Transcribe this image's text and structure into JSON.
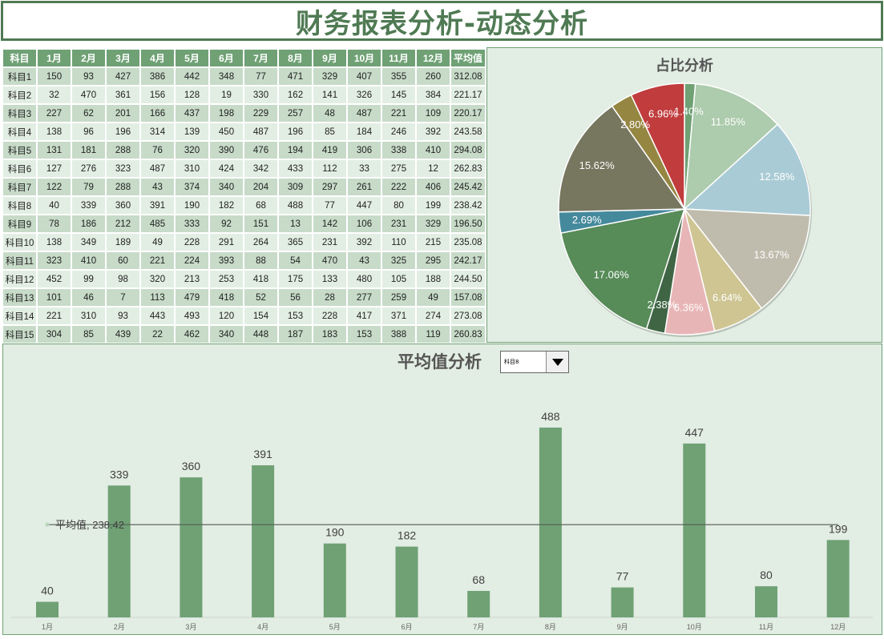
{
  "header": {
    "title": "财务报表分析-动态分析"
  },
  "table": {
    "columns": [
      "科目",
      "1月",
      "2月",
      "3月",
      "4月",
      "5月",
      "6月",
      "7月",
      "8月",
      "9月",
      "10月",
      "11月",
      "12月",
      "平均值"
    ],
    "rows": [
      [
        "科目1",
        "150",
        "93",
        "427",
        "386",
        "442",
        "348",
        "77",
        "471",
        "329",
        "407",
        "355",
        "260",
        "312.08"
      ],
      [
        "科目2",
        "32",
        "470",
        "361",
        "156",
        "128",
        "19",
        "330",
        "162",
        "141",
        "326",
        "145",
        "384",
        "221.17"
      ],
      [
        "科目3",
        "227",
        "62",
        "201",
        "166",
        "437",
        "198",
        "229",
        "257",
        "48",
        "487",
        "221",
        "109",
        "220.17"
      ],
      [
        "科目4",
        "138",
        "96",
        "196",
        "314",
        "139",
        "450",
        "487",
        "196",
        "85",
        "184",
        "246",
        "392",
        "243.58"
      ],
      [
        "科目5",
        "131",
        "181",
        "288",
        "76",
        "320",
        "390",
        "476",
        "194",
        "419",
        "306",
        "338",
        "410",
        "294.08"
      ],
      [
        "科目6",
        "127",
        "276",
        "323",
        "487",
        "310",
        "424",
        "342",
        "433",
        "112",
        "33",
        "275",
        "12",
        "262.83"
      ],
      [
        "科目7",
        "122",
        "79",
        "288",
        "43",
        "374",
        "340",
        "204",
        "309",
        "297",
        "261",
        "222",
        "406",
        "245.42"
      ],
      [
        "科目8",
        "40",
        "339",
        "360",
        "391",
        "190",
        "182",
        "68",
        "488",
        "77",
        "447",
        "80",
        "199",
        "238.42"
      ],
      [
        "科目9",
        "78",
        "186",
        "212",
        "485",
        "333",
        "92",
        "151",
        "13",
        "142",
        "106",
        "231",
        "329",
        "196.50"
      ],
      [
        "科目10",
        "138",
        "349",
        "189",
        "49",
        "228",
        "291",
        "264",
        "365",
        "231",
        "392",
        "110",
        "215",
        "235.08"
      ],
      [
        "科目11",
        "323",
        "410",
        "60",
        "221",
        "224",
        "393",
        "88",
        "54",
        "470",
        "43",
        "325",
        "295",
        "242.17"
      ],
      [
        "科目12",
        "452",
        "99",
        "98",
        "320",
        "213",
        "253",
        "418",
        "175",
        "133",
        "480",
        "105",
        "188",
        "244.50"
      ],
      [
        "科目13",
        "101",
        "46",
        "7",
        "113",
        "479",
        "418",
        "52",
        "56",
        "28",
        "277",
        "259",
        "49",
        "157.08"
      ],
      [
        "科目14",
        "221",
        "310",
        "93",
        "443",
        "493",
        "120",
        "154",
        "153",
        "228",
        "417",
        "371",
        "274",
        "273.08"
      ],
      [
        "科目15",
        "304",
        "85",
        "439",
        "22",
        "462",
        "340",
        "448",
        "187",
        "183",
        "153",
        "388",
        "119",
        "260.83"
      ]
    ]
  },
  "pie": {
    "title": "占比分析",
    "slices": [
      {
        "label": "1.40%",
        "value": 40,
        "color": "#6fa175"
      },
      {
        "label": "11.85%",
        "value": 339,
        "color": "#adcbad"
      },
      {
        "label": "12.58%",
        "value": 360,
        "color": "#a9cbd5"
      },
      {
        "label": "13.67%",
        "value": 391,
        "color": "#bfbcad"
      },
      {
        "label": "6.64%",
        "value": 190,
        "color": "#cec593"
      },
      {
        "label": "6.36%",
        "value": 182,
        "color": "#e8b5b6"
      },
      {
        "label": "2.38%",
        "value": 68,
        "color": "#3f6544"
      },
      {
        "label": "17.06%",
        "value": 488,
        "color": "#578b58"
      },
      {
        "label": "2.69%",
        "value": 77,
        "color": "#45899c"
      },
      {
        "label": "15.62%",
        "value": 447,
        "color": "#77765f"
      },
      {
        "label": "2.80%",
        "value": 80,
        "color": "#958641"
      },
      {
        "label": "6.96%",
        "value": 199,
        "color": "#c13c3d"
      }
    ]
  },
  "bar": {
    "title": "平均值分析",
    "dropdown": {
      "selected": "科目8"
    },
    "avg_label": "平均值, 238.42"
  },
  "chart_data": [
    {
      "type": "pie",
      "title": "占比分析",
      "categories": [
        "1月",
        "2月",
        "3月",
        "4月",
        "5月",
        "6月",
        "7月",
        "8月",
        "9月",
        "10月",
        "11月",
        "12月"
      ],
      "values": [
        40,
        339,
        360,
        391,
        190,
        182,
        68,
        488,
        77,
        447,
        80,
        199
      ],
      "percent_labels": [
        "1.40%",
        "11.85%",
        "12.58%",
        "13.67%",
        "6.64%",
        "6.36%",
        "2.38%",
        "17.06%",
        "2.69%",
        "15.62%",
        "2.80%",
        "6.96%"
      ]
    },
    {
      "type": "bar",
      "title": "平均值分析",
      "categories": [
        "1月",
        "2月",
        "3月",
        "4月",
        "5月",
        "6月",
        "7月",
        "8月",
        "9月",
        "10月",
        "11月",
        "12月"
      ],
      "series": [
        {
          "name": "科目8",
          "values": [
            40,
            339,
            360,
            391,
            190,
            182,
            68,
            488,
            77,
            447,
            80,
            199
          ]
        },
        {
          "name": "平均值",
          "type": "line",
          "values": [
            238.42,
            238.42,
            238.42,
            238.42,
            238.42,
            238.42,
            238.42,
            238.42,
            238.42,
            238.42,
            238.42,
            238.42
          ]
        }
      ],
      "annotation": "平均值, 238.42",
      "xlabel": "",
      "ylabel": "",
      "ylim": [
        0,
        500
      ],
      "grid": false
    }
  ]
}
